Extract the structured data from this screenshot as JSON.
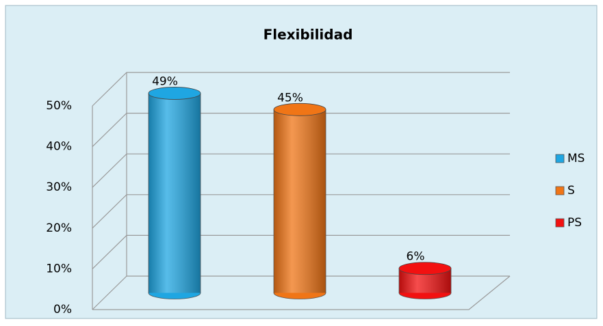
{
  "chart_data": {
    "type": "bar3d",
    "title": "Flexibilidad",
    "categories": [
      "MS",
      "S",
      "PS"
    ],
    "values": [
      49,
      45,
      6
    ],
    "value_labels": [
      "49%",
      "45%",
      "6%"
    ],
    "colors": [
      "#1fa6e2",
      "#f07516",
      "#f21111"
    ],
    "ylim": [
      0,
      50
    ],
    "yticks": [
      {
        "value": 0,
        "label": "0%"
      },
      {
        "value": 10,
        "label": "10%"
      },
      {
        "value": 20,
        "label": "20%"
      },
      {
        "value": 30,
        "label": "30%"
      },
      {
        "value": 40,
        "label": "40%"
      },
      {
        "value": 50,
        "label": "50%"
      }
    ],
    "grid": true,
    "legend": "right"
  }
}
